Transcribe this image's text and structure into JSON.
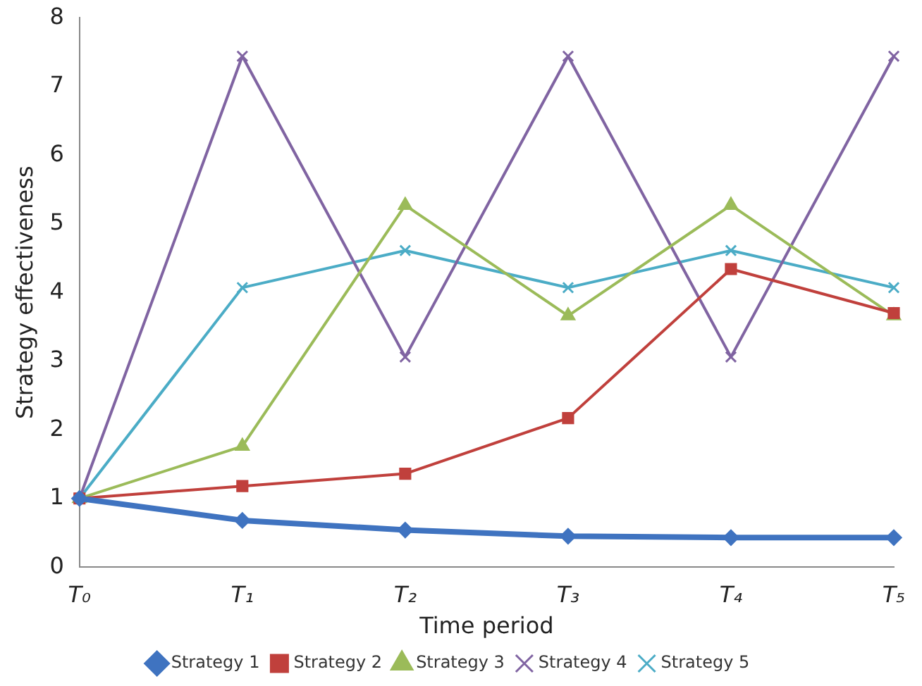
{
  "chart_data": {
    "type": "line",
    "xlabel": "Time period",
    "ylabel": "Strategy effectiveness",
    "categories": [
      "T₀",
      "T₁",
      "T₂",
      "T₃",
      "T₄",
      "T₅"
    ],
    "series": [
      {
        "name": "Strategy 1",
        "color": "#3f73c0",
        "marker": "diamond",
        "values": [
          1.0,
          0.68,
          0.54,
          0.45,
          0.43,
          0.43
        ]
      },
      {
        "name": "Strategy 2",
        "color": "#c0403c",
        "marker": "square",
        "values": [
          1.0,
          1.18,
          1.36,
          2.17,
          4.34,
          3.7
        ]
      },
      {
        "name": "Strategy 3",
        "color": "#9bbb59",
        "marker": "triangle",
        "values": [
          1.0,
          1.76,
          5.27,
          3.66,
          5.27,
          3.66
        ]
      },
      {
        "name": "Strategy 4",
        "color": "#8064a2",
        "marker": "cross",
        "values": [
          1.0,
          7.44,
          3.06,
          7.44,
          3.06,
          7.44
        ]
      },
      {
        "name": "Strategy 5",
        "color": "#4bacc6",
        "marker": "cross",
        "values": [
          1.0,
          4.07,
          4.61,
          4.07,
          4.61,
          4.07
        ]
      }
    ],
    "ylim": [
      0,
      8
    ],
    "yticks": [
      0,
      1,
      2,
      3,
      4,
      5,
      6,
      7,
      8
    ],
    "grid": false,
    "legend": "bottom",
    "line_style": "solid"
  }
}
